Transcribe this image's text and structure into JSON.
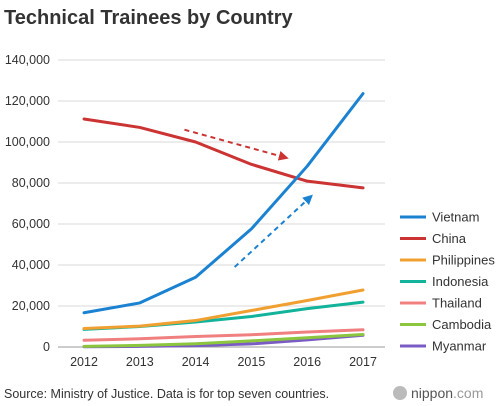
{
  "chart_data": {
    "type": "line",
    "title": "Technical Trainees by Country",
    "xlabel": "",
    "ylabel": "",
    "categories": [
      "2012",
      "2013",
      "2014",
      "2015",
      "2016",
      "2017"
    ],
    "ylim": [
      0,
      140000
    ],
    "yticks": [
      0,
      20000,
      40000,
      60000,
      80000,
      100000,
      120000,
      140000
    ],
    "ytick_labels": [
      "0",
      "20,000",
      "40,000",
      "60,000",
      "80,000",
      "100,000",
      "120,000",
      "140,000"
    ],
    "grid": true,
    "legend_position": "right",
    "series": [
      {
        "name": "Vietnam",
        "color": "#1b82d2",
        "values": [
          16700,
          21500,
          34000,
          57600,
          88200,
          123600
        ]
      },
      {
        "name": "China",
        "color": "#cc3333",
        "values": [
          111200,
          107100,
          100000,
          89100,
          80900,
          77600
        ]
      },
      {
        "name": "Philippines",
        "color": "#f0a030",
        "values": [
          9000,
          10200,
          12900,
          17800,
          22700,
          27800
        ]
      },
      {
        "name": "Indonesia",
        "color": "#11b39a",
        "values": [
          8600,
          10000,
          12200,
          14900,
          18700,
          21900
        ]
      },
      {
        "name": "Thailand",
        "color": "#f08080",
        "values": [
          3300,
          4000,
          5100,
          6000,
          7300,
          8400
        ]
      },
      {
        "name": "Cambodia",
        "color": "#8cc63f",
        "values": [
          300,
          800,
          1600,
          3000,
          4500,
          6100
        ]
      },
      {
        "name": "Myanmar",
        "color": "#7a5bc4",
        "values": [
          100,
          300,
          700,
          1500,
          3500,
          5700
        ]
      }
    ],
    "trend_arrows": [
      {
        "color": "#cc3333",
        "from": {
          "x": 2013.8,
          "y": 106000
        },
        "to": {
          "x": 2015.6,
          "y": 92500
        }
      },
      {
        "color": "#1b82d2",
        "from": {
          "x": 2014.7,
          "y": 39000
        },
        "to": {
          "x": 2016.05,
          "y": 73000
        }
      }
    ]
  },
  "footer": {
    "source": "Source: Ministry of Justice. Data is for top seven countries.",
    "brand_prefix": "nippon",
    "brand_suffix": ".com"
  }
}
